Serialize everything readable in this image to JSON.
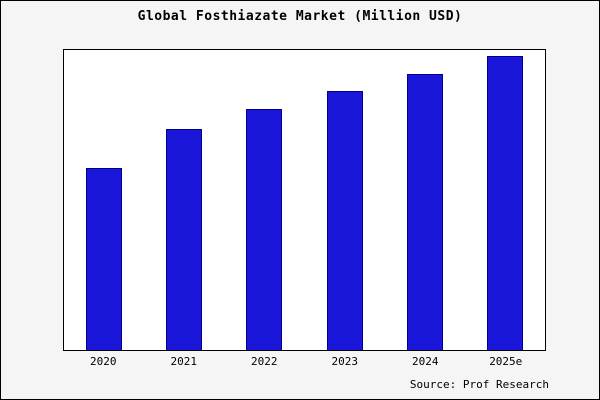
{
  "page": {
    "background": "#f5f5f5",
    "border_color": "#000000"
  },
  "title": "Global Fosthiazate Market (Million USD)",
  "source": "Source: Prof Research",
  "chart_data": {
    "type": "bar",
    "title": "Global Fosthiazate Market (Million USD)",
    "categories": [
      "2020",
      "2021",
      "2022",
      "2023",
      "2024",
      "2025e"
    ],
    "values": [
      62,
      75,
      82,
      88,
      94,
      100
    ],
    "xlabel": "",
    "ylabel": "",
    "ylim": [
      0,
      102
    ],
    "grid": false,
    "legend_position": "none",
    "bar_color": "#1a16d9",
    "bar_border_color": "#00008b",
    "plot_background": "#ffffff",
    "annotation": "Source: Prof Research"
  }
}
